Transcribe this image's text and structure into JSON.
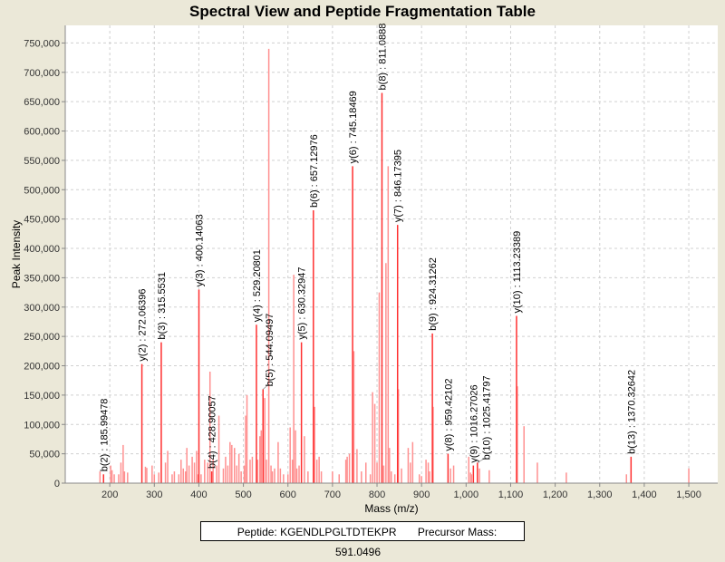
{
  "chart_data": {
    "type": "bar",
    "title": "Spectral View and Peptide Fragmentation Table",
    "xlabel": "Mass (m/z)",
    "ylabel": "Peak Intensity",
    "xlim": [
      100,
      1565
    ],
    "ylim": [
      0,
      780000
    ],
    "xticks": [
      200,
      300,
      400,
      500,
      600,
      700,
      800,
      900,
      1000,
      1100,
      1200,
      1300,
      1400,
      1500
    ],
    "xtick_labels": [
      "200",
      "300",
      "400",
      "500",
      "600",
      "700",
      "800",
      "900",
      "1,000",
      "1,100",
      "1,200",
      "1,300",
      "1,400",
      "1,500"
    ],
    "yticks": [
      0,
      50000,
      100000,
      150000,
      200000,
      250000,
      300000,
      350000,
      400000,
      450000,
      500000,
      550000,
      600000,
      650000,
      700000,
      750000
    ],
    "ytick_labels": [
      "0",
      "50,000",
      "100,000",
      "150,000",
      "200,000",
      "250,000",
      "300,000",
      "350,000",
      "400,000",
      "450,000",
      "500,000",
      "550,000",
      "600,000",
      "650,000",
      "700,000",
      "750,000"
    ],
    "grid": true,
    "colors": {
      "annotated": "#ff3030",
      "unannotated": "#ff9090"
    },
    "annotated_peaks": [
      {
        "mz": 185.99478,
        "intensity": 15000,
        "label": "b(2) : 185.99478"
      },
      {
        "mz": 272.06396,
        "intensity": 203000,
        "label": "y(2) : 272.06396"
      },
      {
        "mz": 315.5531,
        "intensity": 240000,
        "label": "b(3) : 315.5531"
      },
      {
        "mz": 400.14063,
        "intensity": 330000,
        "label": "y(3) : 400.14063"
      },
      {
        "mz": 428.90057,
        "intensity": 20000,
        "label": "b(4) : 428.90057"
      },
      {
        "mz": 529.20801,
        "intensity": 270000,
        "label": "y(4) : 529.20801"
      },
      {
        "mz": 544.09497,
        "intensity": 160000,
        "label": "b(5) : 544.09497"
      },
      {
        "mz": 630.32947,
        "intensity": 240000,
        "label": "y(5) : 630.32947"
      },
      {
        "mz": 657.12976,
        "intensity": 465000,
        "label": "b(6) : 657.12976"
      },
      {
        "mz": 745.18469,
        "intensity": 540000,
        "label": "y(6) : 745.18469"
      },
      {
        "mz": 811.0888,
        "intensity": 665000,
        "label": "b(8) : 811.0888"
      },
      {
        "mz": 846.17395,
        "intensity": 440000,
        "label": "y(7) : 846.17395"
      },
      {
        "mz": 924.31262,
        "intensity": 255000,
        "label": "b(9) : 924.31262"
      },
      {
        "mz": 959.42102,
        "intensity": 50000,
        "label": "y(8) : 959.42102"
      },
      {
        "mz": 1016.27026,
        "intensity": 30000,
        "label": "y(9) : 1016.27026"
      },
      {
        "mz": 1025.41797,
        "intensity": 35000,
        "label": "b(10) : 1025.41797"
      },
      {
        "mz": 1113.23389,
        "intensity": 285000,
        "label": "y(10) : 1113.23389"
      },
      {
        "mz": 1370.32642,
        "intensity": 45000,
        "label": "b(13) : 1370.32642"
      }
    ],
    "peaks": [
      [
        178,
        20000
      ],
      [
        202,
        30000
      ],
      [
        205,
        22000
      ],
      [
        210,
        15000
      ],
      [
        220,
        15000
      ],
      [
        225,
        35000
      ],
      [
        230,
        65000
      ],
      [
        233,
        20000
      ],
      [
        240,
        18000
      ],
      [
        280,
        28000
      ],
      [
        283,
        26000
      ],
      [
        295,
        30000
      ],
      [
        300,
        15000
      ],
      [
        310,
        18000
      ],
      [
        325,
        35000
      ],
      [
        330,
        55000
      ],
      [
        340,
        15000
      ],
      [
        345,
        20000
      ],
      [
        355,
        15000
      ],
      [
        360,
        40000
      ],
      [
        365,
        25000
      ],
      [
        370,
        20000
      ],
      [
        373,
        60000
      ],
      [
        378,
        30000
      ],
      [
        385,
        45000
      ],
      [
        390,
        35000
      ],
      [
        395,
        55000
      ],
      [
        398,
        15000
      ],
      [
        405,
        15000
      ],
      [
        413,
        40000
      ],
      [
        420,
        35000
      ],
      [
        425,
        190000
      ],
      [
        432,
        40000
      ],
      [
        440,
        30000
      ],
      [
        445,
        115000
      ],
      [
        455,
        25000
      ],
      [
        460,
        45000
      ],
      [
        465,
        30000
      ],
      [
        470,
        70000
      ],
      [
        474,
        65000
      ],
      [
        480,
        60000
      ],
      [
        485,
        30000
      ],
      [
        490,
        50000
      ],
      [
        495,
        20000
      ],
      [
        502,
        30000
      ],
      [
        505,
        115000
      ],
      [
        508,
        150000
      ],
      [
        515,
        40000
      ],
      [
        520,
        45000
      ],
      [
        532,
        40000
      ],
      [
        537,
        80000
      ],
      [
        540,
        90000
      ],
      [
        548,
        145000
      ],
      [
        552,
        40000
      ],
      [
        557,
        740000
      ],
      [
        562,
        30000
      ],
      [
        565,
        20000
      ],
      [
        570,
        25000
      ],
      [
        578,
        70000
      ],
      [
        583,
        25000
      ],
      [
        590,
        15000
      ],
      [
        600,
        15000
      ],
      [
        605,
        95000
      ],
      [
        610,
        40000
      ],
      [
        613,
        355000
      ],
      [
        617,
        90000
      ],
      [
        620,
        25000
      ],
      [
        625,
        30000
      ],
      [
        637,
        80000
      ],
      [
        645,
        20000
      ],
      [
        660,
        130000
      ],
      [
        665,
        40000
      ],
      [
        670,
        45000
      ],
      [
        675,
        20000
      ],
      [
        700,
        20000
      ],
      [
        715,
        15000
      ],
      [
        730,
        40000
      ],
      [
        733,
        45000
      ],
      [
        738,
        50000
      ],
      [
        748,
        225000
      ],
      [
        755,
        58000
      ],
      [
        765,
        20000
      ],
      [
        775,
        35000
      ],
      [
        785,
        15000
      ],
      [
        790,
        155000
      ],
      [
        795,
        135000
      ],
      [
        800,
        35000
      ],
      [
        805,
        325000
      ],
      [
        815,
        30000
      ],
      [
        820,
        375000
      ],
      [
        825,
        540000
      ],
      [
        828,
        60000
      ],
      [
        832,
        20000
      ],
      [
        840,
        15000
      ],
      [
        848,
        160000
      ],
      [
        855,
        25000
      ],
      [
        870,
        60000
      ],
      [
        875,
        35000
      ],
      [
        880,
        70000
      ],
      [
        895,
        15000
      ],
      [
        900,
        12000
      ],
      [
        910,
        40000
      ],
      [
        915,
        35000
      ],
      [
        918,
        20000
      ],
      [
        926,
        130000
      ],
      [
        965,
        25000
      ],
      [
        972,
        30000
      ],
      [
        1006,
        45000
      ],
      [
        1010,
        18000
      ],
      [
        1012,
        15000
      ],
      [
        1030,
        25000
      ],
      [
        1052,
        22000
      ],
      [
        1115,
        165000
      ],
      [
        1130,
        97000
      ],
      [
        1160,
        35000
      ],
      [
        1225,
        18000
      ],
      [
        1360,
        15000
      ],
      [
        1500,
        25000
      ]
    ]
  },
  "footer": {
    "peptide": "Peptide: KGENDLPGLTDTEKPR",
    "precursor": "Precursor Mass: 591.0496"
  }
}
